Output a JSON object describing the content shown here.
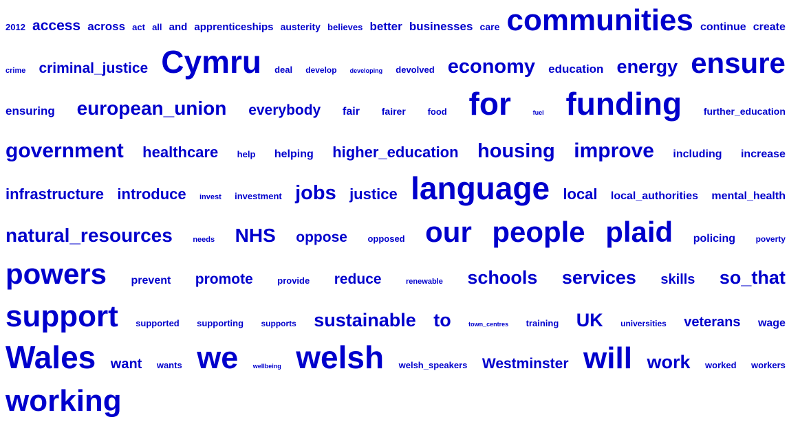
{
  "colors": {
    "word": "#0000CC",
    "background": "#FFFFFF"
  },
  "rows": [
    [
      {
        "text": "2012",
        "size": 13
      },
      {
        "text": "access",
        "size": 21
      },
      {
        "text": "across",
        "size": 17
      },
      {
        "text": "act",
        "size": 13
      },
      {
        "text": "all",
        "size": 13
      },
      {
        "text": "and",
        "size": 15
      },
      {
        "text": "apprenticeships",
        "size": 15
      },
      {
        "text": "austerity",
        "size": 14
      },
      {
        "text": "believes",
        "size": 13
      },
      {
        "text": "better",
        "size": 17
      },
      {
        "text": "businesses",
        "size": 17
      },
      {
        "text": "care",
        "size": 14
      },
      {
        "text": "communities",
        "size": 44
      },
      {
        "text": "continue",
        "size": 16
      },
      {
        "text": "create",
        "size": 16
      }
    ],
    [
      {
        "text": "crime",
        "size": 11
      },
      {
        "text": "criminal_justice",
        "size": 21
      },
      {
        "text": "Cymru",
        "size": 46
      },
      {
        "text": "deal",
        "size": 13
      },
      {
        "text": "develop",
        "size": 12
      },
      {
        "text": "developing",
        "size": 9
      },
      {
        "text": "devolved",
        "size": 13
      },
      {
        "text": "economy",
        "size": 29
      },
      {
        "text": "education",
        "size": 17
      },
      {
        "text": "energy",
        "size": 27
      },
      {
        "text": "ensure",
        "size": 42
      }
    ],
    [
      {
        "text": "ensuring",
        "size": 17
      },
      {
        "text": "european_union",
        "size": 28
      },
      {
        "text": "everybody",
        "size": 21
      },
      {
        "text": "fair",
        "size": 16
      },
      {
        "text": "fairer",
        "size": 14
      },
      {
        "text": "food",
        "size": 13
      },
      {
        "text": "for",
        "size": 46
      },
      {
        "text": "fuel",
        "size": 9
      },
      {
        "text": "funding",
        "size": 46
      },
      {
        "text": "further_education",
        "size": 14
      }
    ],
    [
      {
        "text": "government",
        "size": 30
      },
      {
        "text": "healthcare",
        "size": 22
      },
      {
        "text": "help",
        "size": 13
      },
      {
        "text": "helping",
        "size": 16
      },
      {
        "text": "higher_education",
        "size": 22
      },
      {
        "text": "housing",
        "size": 29
      },
      {
        "text": "improve",
        "size": 30
      },
      {
        "text": "including",
        "size": 16
      },
      {
        "text": "increase",
        "size": 16
      }
    ],
    [
      {
        "text": "infrastructure",
        "size": 22
      },
      {
        "text": "introduce",
        "size": 22
      },
      {
        "text": "invest",
        "size": 11
      },
      {
        "text": "investment",
        "size": 13
      },
      {
        "text": "jobs",
        "size": 29
      },
      {
        "text": "justice",
        "size": 22
      },
      {
        "text": "language",
        "size": 46
      },
      {
        "text": "local",
        "size": 22
      },
      {
        "text": "local_authorities",
        "size": 16
      },
      {
        "text": "mental_health",
        "size": 16
      }
    ],
    [
      {
        "text": "natural_resources",
        "size": 28
      },
      {
        "text": "needs",
        "size": 11
      },
      {
        "text": "NHS",
        "size": 28
      },
      {
        "text": "oppose",
        "size": 21
      },
      {
        "text": "opposed",
        "size": 13
      },
      {
        "text": "our",
        "size": 42
      },
      {
        "text": "people",
        "size": 42
      },
      {
        "text": "plaid",
        "size": 42
      },
      {
        "text": "policing",
        "size": 16
      },
      {
        "text": "poverty",
        "size": 12
      }
    ],
    [
      {
        "text": "powers",
        "size": 42
      },
      {
        "text": "prevent",
        "size": 16
      },
      {
        "text": "promote",
        "size": 21
      },
      {
        "text": "provide",
        "size": 13
      },
      {
        "text": "reduce",
        "size": 21
      },
      {
        "text": "renewable",
        "size": 11
      },
      {
        "text": "schools",
        "size": 27
      },
      {
        "text": "services",
        "size": 27
      },
      {
        "text": "skills",
        "size": 20
      },
      {
        "text": "so_that",
        "size": 27
      }
    ],
    [
      {
        "text": "support",
        "size": 44
      },
      {
        "text": "supported",
        "size": 13
      },
      {
        "text": "supporting",
        "size": 13
      },
      {
        "text": "supports",
        "size": 12
      },
      {
        "text": "sustainable",
        "size": 27
      },
      {
        "text": "to",
        "size": 27
      },
      {
        "text": "town_centres",
        "size": 9
      },
      {
        "text": "training",
        "size": 13
      },
      {
        "text": "UK",
        "size": 27
      },
      {
        "text": "universities",
        "size": 12
      },
      {
        "text": "veterans",
        "size": 20
      },
      {
        "text": "wage",
        "size": 16
      }
    ],
    [
      {
        "text": "Wales",
        "size": 46
      },
      {
        "text": "want",
        "size": 20
      },
      {
        "text": "wants",
        "size": 13
      },
      {
        "text": "we",
        "size": 45
      },
      {
        "text": "wellbeing",
        "size": 9
      },
      {
        "text": "welsh",
        "size": 46
      },
      {
        "text": "welsh_speakers",
        "size": 13
      },
      {
        "text": "Westminster",
        "size": 21
      },
      {
        "text": "will",
        "size": 44
      },
      {
        "text": "work",
        "size": 27
      },
      {
        "text": "worked",
        "size": 13
      },
      {
        "text": "workers",
        "size": 13
      }
    ],
    [
      {
        "text": "working",
        "size": 44
      }
    ]
  ]
}
